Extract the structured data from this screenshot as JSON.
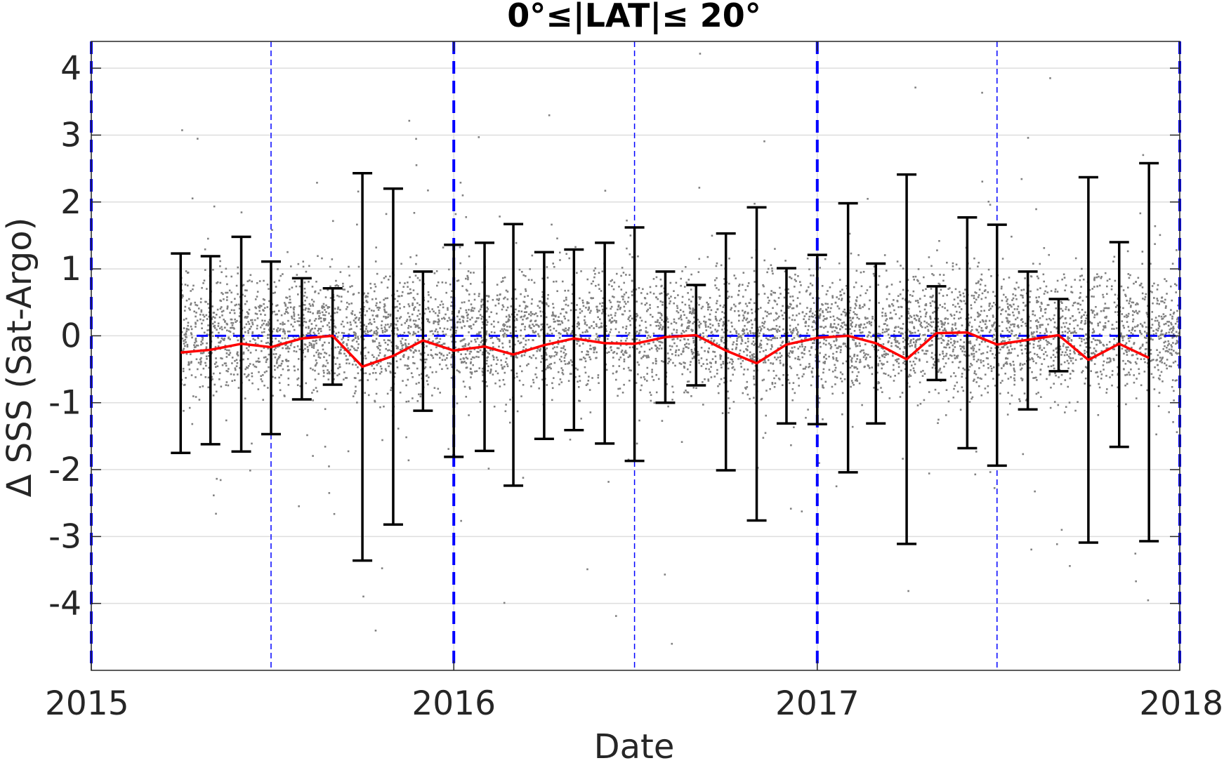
{
  "chart_data": {
    "type": "scatter",
    "title": "0°≤|LAT|≤ 20°",
    "xlabel": "Date",
    "ylabel": "Δ SSS (Sat-Argo)",
    "x_ticks": [
      "2015",
      "2016",
      "2017",
      "2018"
    ],
    "y_ticks": [
      "4",
      "3",
      "2",
      "1",
      "0",
      "-1",
      "-2",
      "-3",
      "-4"
    ],
    "xlim": [
      "2015-01-01",
      "2018-01-01"
    ],
    "ylim": [
      -5,
      4.4
    ],
    "grid": true,
    "reference_line_y": 0,
    "year_lines": [
      "2015-01-01",
      "2016-01-01",
      "2017-01-01",
      "2018-01-01"
    ],
    "half_year_lines": [
      "2015-07-01",
      "2016-07-01",
      "2017-07-01"
    ],
    "series": [
      {
        "kind": "errorbar",
        "color": "#000000",
        "points": [
          {
            "date": "2015-04-01",
            "low": -1.75,
            "high": 1.23
          },
          {
            "date": "2015-05-01",
            "low": -1.62,
            "high": 1.19
          },
          {
            "date": "2015-06-01",
            "low": -1.73,
            "high": 1.48
          },
          {
            "date": "2015-07-01",
            "low": -1.47,
            "high": 1.11
          },
          {
            "date": "2015-08-01",
            "low": -0.95,
            "high": 0.86
          },
          {
            "date": "2015-09-01",
            "low": -0.73,
            "high": 0.71
          },
          {
            "date": "2015-10-01",
            "low": -3.36,
            "high": 2.43
          },
          {
            "date": "2015-11-01",
            "low": -2.82,
            "high": 2.2
          },
          {
            "date": "2015-12-01",
            "low": -1.12,
            "high": 0.96
          },
          {
            "date": "2016-01-01",
            "low": -1.81,
            "high": 1.36
          },
          {
            "date": "2016-02-01",
            "low": -1.72,
            "high": 1.39
          },
          {
            "date": "2016-03-01",
            "low": -2.24,
            "high": 1.67
          },
          {
            "date": "2016-04-01",
            "low": -1.54,
            "high": 1.25
          },
          {
            "date": "2016-05-01",
            "low": -1.41,
            "high": 1.29
          },
          {
            "date": "2016-06-01",
            "low": -1.61,
            "high": 1.39
          },
          {
            "date": "2016-07-01",
            "low": -1.87,
            "high": 1.62
          },
          {
            "date": "2016-08-01",
            "low": -1.0,
            "high": 0.96
          },
          {
            "date": "2016-09-01",
            "low": -0.74,
            "high": 0.76
          },
          {
            "date": "2016-10-01",
            "low": -2.01,
            "high": 1.53
          },
          {
            "date": "2016-11-01",
            "low": -2.76,
            "high": 1.92
          },
          {
            "date": "2016-12-01",
            "low": -1.31,
            "high": 1.01
          },
          {
            "date": "2017-01-01",
            "low": -1.32,
            "high": 1.21
          },
          {
            "date": "2017-02-01",
            "low": -2.04,
            "high": 1.98
          },
          {
            "date": "2017-03-01",
            "low": -1.31,
            "high": 1.08
          },
          {
            "date": "2017-04-01",
            "low": -3.11,
            "high": 2.41
          },
          {
            "date": "2017-05-01",
            "low": -0.66,
            "high": 0.74
          },
          {
            "date": "2017-06-01",
            "low": -1.68,
            "high": 1.77
          },
          {
            "date": "2017-07-01",
            "low": -1.94,
            "high": 1.66
          },
          {
            "date": "2017-08-01",
            "low": -1.1,
            "high": 0.96
          },
          {
            "date": "2017-09-01",
            "low": -0.53,
            "high": 0.55
          },
          {
            "date": "2017-10-01",
            "low": -3.09,
            "high": 2.37
          },
          {
            "date": "2017-11-01",
            "low": -1.66,
            "high": 1.4
          },
          {
            "date": "2017-12-01",
            "low": -3.07,
            "high": 2.58
          }
        ]
      },
      {
        "kind": "line",
        "color": "#ff0000",
        "x": [
          "2015-04-01",
          "2015-05-01",
          "2015-06-01",
          "2015-07-01",
          "2015-08-01",
          "2015-09-01",
          "2015-10-01",
          "2015-11-01",
          "2015-12-01",
          "2016-01-01",
          "2016-02-01",
          "2016-03-01",
          "2016-04-01",
          "2016-05-01",
          "2016-06-01",
          "2016-07-01",
          "2016-08-01",
          "2016-09-01",
          "2016-10-01",
          "2016-11-01",
          "2016-12-01",
          "2017-01-01",
          "2017-02-01",
          "2017-03-01",
          "2017-04-01",
          "2017-05-01",
          "2017-06-01",
          "2017-07-01",
          "2017-08-01",
          "2017-09-01",
          "2017-10-01",
          "2017-11-01",
          "2017-12-01"
        ],
        "y": [
          -0.25,
          -0.21,
          -0.12,
          -0.17,
          -0.04,
          0.0,
          -0.46,
          -0.3,
          -0.07,
          -0.22,
          -0.16,
          -0.28,
          -0.14,
          -0.04,
          -0.11,
          -0.12,
          -0.02,
          0.01,
          -0.22,
          -0.41,
          -0.13,
          -0.03,
          0.0,
          -0.11,
          -0.35,
          0.04,
          0.05,
          -0.13,
          -0.06,
          0.01,
          -0.36,
          -0.12,
          -0.33
        ]
      },
      {
        "kind": "scatter",
        "color": "#808080",
        "description_count": 6000,
        "x_range": [
          "2015-04-01",
          "2018-01-01"
        ],
        "center": 0.05,
        "spread": 0.45
      }
    ]
  },
  "colors": {
    "errorbar": "#000000",
    "mean_line": "#ff0000",
    "points": "#808080",
    "reference": "#0000ff",
    "grid": "#dedede",
    "axes": "#262626"
  }
}
